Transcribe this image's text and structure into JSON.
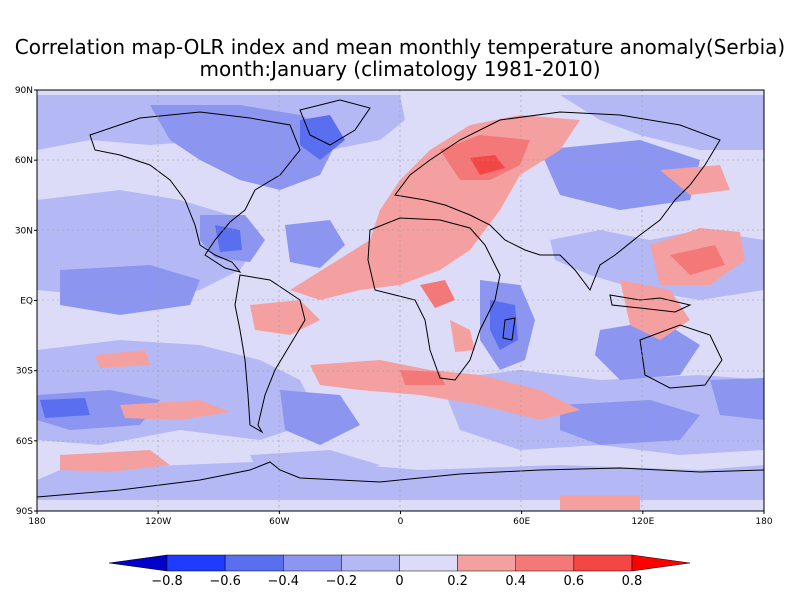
{
  "title": {
    "line1": "Correlation map-OLR index and mean monthly temperature anomaly(Serbia)",
    "line2": "month:January (climatology 1981-2010)"
  },
  "axes": {
    "lat_ticks": [
      {
        "value": 90,
        "label": "90N"
      },
      {
        "value": 60,
        "label": "60N"
      },
      {
        "value": 30,
        "label": "30N"
      },
      {
        "value": 0,
        "label": "EQ"
      },
      {
        "value": -30,
        "label": "30S"
      },
      {
        "value": -60,
        "label": "60S"
      },
      {
        "value": -90,
        "label": "90S"
      }
    ],
    "lon_ticks": [
      {
        "value": 0,
        "label": "180"
      },
      {
        "value": 60,
        "label": "120W"
      },
      {
        "value": 120,
        "label": "60W"
      },
      {
        "value": 180,
        "label": "0"
      },
      {
        "value": 240,
        "label": "60E"
      },
      {
        "value": 300,
        "label": "120E"
      },
      {
        "value": 360,
        "label": "180"
      }
    ]
  },
  "colorbar": {
    "labels": [
      "-0.8",
      "-0.6",
      "-0.4",
      "-0.2",
      "0",
      "0.2",
      "0.4",
      "0.6",
      "0.8"
    ],
    "colors": [
      "#0000c8",
      "#1e3cff",
      "#5a6ef0",
      "#8c96f0",
      "#b4b9f5",
      "#dcdcf8",
      "#f5a0a0",
      "#f57878",
      "#f54646",
      "#ff0000"
    ]
  },
  "chart_data": {
    "type": "heatmap",
    "map": "world correlation field",
    "x_range": [
      -180,
      180
    ],
    "y_range": [
      -90,
      90
    ],
    "levels": [
      -0.8,
      -0.6,
      -0.4,
      -0.2,
      0,
      0.2,
      0.4,
      0.6,
      0.8
    ],
    "grid": true
  }
}
